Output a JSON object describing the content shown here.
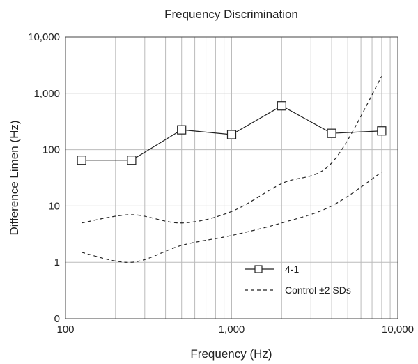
{
  "chart_data": {
    "type": "line",
    "title": "Frequency Discrimination",
    "xlabel": "Frequency (Hz)",
    "ylabel": "Difference Limen (Hz)",
    "x_scale": "log",
    "y_scale": "log",
    "xlim": [
      100,
      10000
    ],
    "ylim": [
      0.1,
      10000
    ],
    "x_ticks": [
      {
        "value": 100,
        "label": "100"
      },
      {
        "value": 1000,
        "label": "1,000"
      },
      {
        "value": 10000,
        "label": "10,000"
      }
    ],
    "y_ticks": [
      {
        "value": 0.1,
        "label": "0"
      },
      {
        "value": 1,
        "label": "1"
      },
      {
        "value": 10,
        "label": "10"
      },
      {
        "value": 100,
        "label": "100"
      },
      {
        "value": 1000,
        "label": "1,000"
      },
      {
        "value": 10000,
        "label": "10,000"
      }
    ],
    "grid": true,
    "legend": {
      "placement": "bottom-right",
      "entries": [
        {
          "series": "4-1",
          "label": "4-1"
        },
        {
          "series": "control",
          "label": "Control ±2 SDs"
        }
      ]
    },
    "series": [
      {
        "name": "4-1",
        "style": "solid",
        "marker": "open-square",
        "x": [
          125,
          250,
          500,
          1000,
          2000,
          4000,
          8000
        ],
        "values": [
          65,
          65,
          225,
          185,
          600,
          195,
          215
        ]
      },
      {
        "name": "Control ±2 SDs",
        "style": "dashed",
        "x": [
          125,
          250,
          500,
          1000,
          2000,
          4000,
          8000
        ],
        "values": [
          5,
          7,
          5,
          8,
          25,
          58,
          2000
        ]
      },
      {
        "name": "Control ±2 SDs",
        "style": "dashed",
        "x": [
          125,
          250,
          500,
          1000,
          2000,
          4000,
          8000
        ],
        "values": [
          1.5,
          1,
          2,
          3,
          5,
          10,
          40
        ]
      }
    ],
    "colors": {
      "line": "#222222",
      "grid": "#bbbbbb",
      "frame": "#444444",
      "background": "#ffffff"
    }
  }
}
